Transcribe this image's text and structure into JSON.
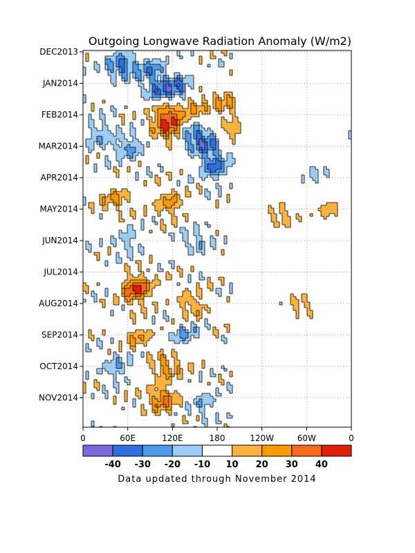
{
  "chart_data": {
    "type": "heatmap",
    "title": "Outgoing Longwave Radiation Anomaly (W/m2)",
    "x_ticks": [
      "0",
      "60E",
      "120E",
      "180",
      "120W",
      "60W",
      "0"
    ],
    "y_ticks": [
      "DEC2013",
      "JAN2014",
      "FEB2014",
      "MAR2014",
      "APR2014",
      "MAY2014",
      "JUN2014",
      "JUL2014",
      "AUG2014",
      "SEP2014",
      "OCT2014",
      "NOV2014"
    ],
    "x_range": [
      0,
      360
    ],
    "grid": true,
    "colorbar": {
      "labels": [
        "-40",
        "-30",
        "-20",
        "-10",
        "10",
        "20",
        "30",
        "40"
      ],
      "colors": [
        "#7b68dc",
        "#2f6ee0",
        "#4f9ae8",
        "#9ccdf5",
        "#ffffff",
        "#fbb33e",
        "#fb9a00",
        "#f56a1b",
        "#e01e0a"
      ]
    },
    "anomalies": [
      {
        "lon": 50,
        "t": 0.4,
        "v": -32
      },
      {
        "lon": 90,
        "t": 0.5,
        "v": -22
      },
      {
        "lon": 100,
        "t": 1.2,
        "v": -25
      },
      {
        "lon": 125,
        "t": 1.1,
        "v": -28
      },
      {
        "lon": 110,
        "t": 1.9,
        "v": 28
      },
      {
        "lon": 145,
        "t": 1.7,
        "v": 18
      },
      {
        "lon": 115,
        "t": 2.4,
        "v": 35
      },
      {
        "lon": 145,
        "t": 2.6,
        "v": -25
      },
      {
        "lon": 165,
        "t": 2.9,
        "v": -28
      },
      {
        "lon": 175,
        "t": 3.6,
        "v": -30
      },
      {
        "lon": 190,
        "t": 1.6,
        "v": 18
      },
      {
        "lon": 200,
        "t": 2.5,
        "v": 15
      },
      {
        "lon": 60,
        "t": 3.0,
        "v": -22
      },
      {
        "lon": 20,
        "t": 2.6,
        "v": -18
      },
      {
        "lon": 40,
        "t": 4.6,
        "v": 18
      },
      {
        "lon": 115,
        "t": 4.8,
        "v": 22
      },
      {
        "lon": 60,
        "t": 6.0,
        "v": -15
      },
      {
        "lon": 150,
        "t": 6.0,
        "v": -15
      },
      {
        "lon": 70,
        "t": 7.5,
        "v": 42
      },
      {
        "lon": 145,
        "t": 8.0,
        "v": 18
      },
      {
        "lon": 70,
        "t": 9.0,
        "v": 18
      },
      {
        "lon": 135,
        "t": 9.0,
        "v": -18
      },
      {
        "lon": 110,
        "t": 10.0,
        "v": 22
      },
      {
        "lon": 45,
        "t": 10.0,
        "v": -18
      },
      {
        "lon": 105,
        "t": 11.0,
        "v": 30
      },
      {
        "lon": 160,
        "t": 11.1,
        "v": -15
      },
      {
        "lon": 265,
        "t": 5.2,
        "v": 15
      },
      {
        "lon": 310,
        "t": 3.8,
        "v": -12
      },
      {
        "lon": 330,
        "t": 5.0,
        "v": 14
      },
      {
        "lon": 290,
        "t": 8.0,
        "v": 13
      }
    ]
  },
  "footer": "Data updated through November 2014"
}
